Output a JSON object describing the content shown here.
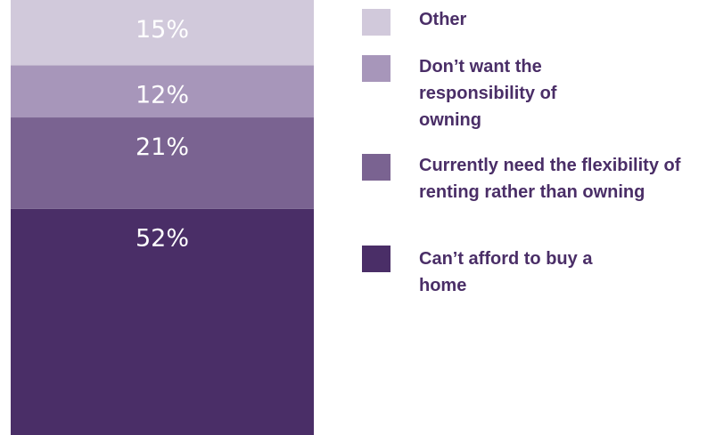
{
  "chart_data": {
    "type": "stacked_bar",
    "categories": [
      null
    ],
    "series": [
      {
        "name": "Other",
        "color": "#d1c9db",
        "values": [
          15
        ],
        "value_labels": [
          "15%"
        ]
      },
      {
        "name": "Don’t want the responsibility of owning",
        "color": "#a796ba",
        "values": [
          12
        ],
        "value_labels": [
          "12%"
        ]
      },
      {
        "name": "Currently need the flexibility of renting rather than owning",
        "color": "#7a6391",
        "values": [
          21
        ],
        "value_labels": [
          "21%"
        ]
      },
      {
        "name": "Can’t afford to buy a home",
        "color": "#4a2e67",
        "values": [
          52
        ],
        "value_labels": [
          "52%"
        ]
      }
    ],
    "ylim": [
      0,
      100
    ]
  }
}
